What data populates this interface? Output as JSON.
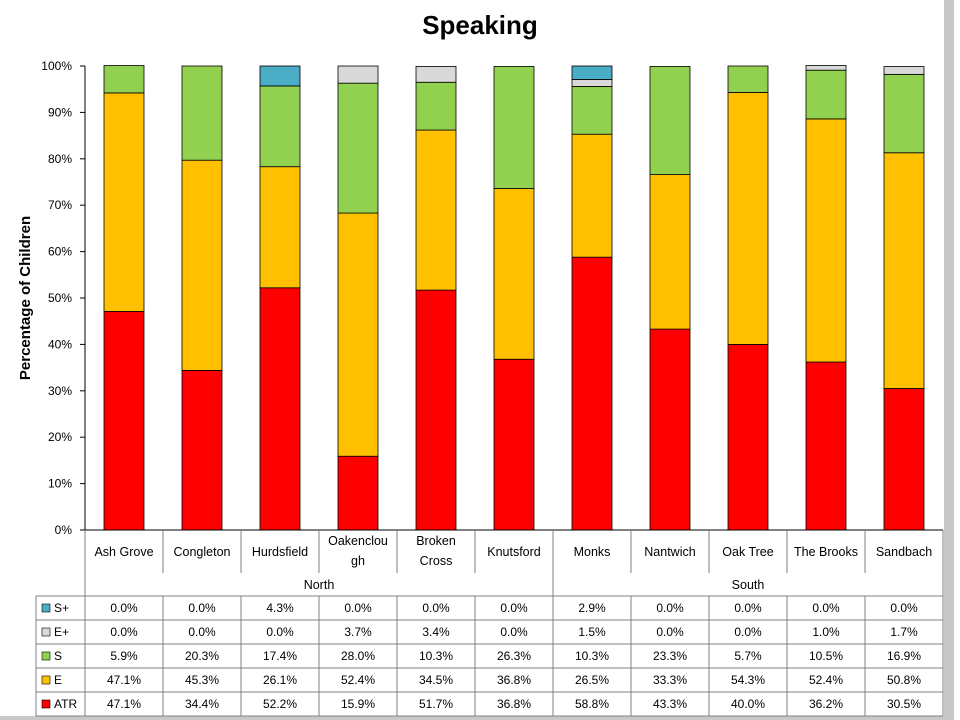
{
  "chart_data": {
    "type": "bar",
    "stacked": true,
    "title": "Speaking",
    "ylabel": "Percentage of Children",
    "xlabel": "",
    "ylim": [
      0,
      100
    ],
    "yticks": [
      "0%",
      "10%",
      "20%",
      "30%",
      "40%",
      "50%",
      "60%",
      "70%",
      "80%",
      "90%",
      "100%"
    ],
    "grid": false,
    "legend": "data-table-left",
    "categories": [
      "Ash Grove",
      "Congleton",
      "Hurdsfield",
      "Oakenclough",
      "Broken Cross",
      "Knutsford",
      "Monks",
      "Nantwich",
      "Oak Tree",
      "The Brooks",
      "Sandbach"
    ],
    "category_display": [
      [
        "Ash Grove"
      ],
      [
        "Congleton"
      ],
      [
        "Hurdsfield"
      ],
      [
        "Oakenclou",
        "gh"
      ],
      [
        "Broken",
        "Cross"
      ],
      [
        "Knutsford"
      ],
      [
        "Monks"
      ],
      [
        "Nantwich"
      ],
      [
        "Oak Tree"
      ],
      [
        "The Brooks"
      ],
      [
        "Sandbach"
      ]
    ],
    "groups": [
      {
        "name": "North",
        "span": 6
      },
      {
        "name": "South",
        "span": 5
      }
    ],
    "series": [
      {
        "name": "ATR",
        "color": "#ff0000",
        "values": [
          47.1,
          34.4,
          52.2,
          15.9,
          51.7,
          36.8,
          58.8,
          43.3,
          40.0,
          36.2,
          30.5
        ],
        "labels": [
          "47.1%",
          "34.4%",
          "52.2%",
          "15.9%",
          "51.7%",
          "36.8%",
          "58.8%",
          "43.3%",
          "40.0%",
          "36.2%",
          "30.5%"
        ]
      },
      {
        "name": "E",
        "color": "#ffc000",
        "values": [
          47.1,
          45.3,
          26.1,
          52.4,
          34.5,
          36.8,
          26.5,
          33.3,
          54.3,
          52.4,
          50.8
        ],
        "labels": [
          "47.1%",
          "45.3%",
          "26.1%",
          "52.4%",
          "34.5%",
          "36.8%",
          "26.5%",
          "33.3%",
          "54.3%",
          "52.4%",
          "50.8%"
        ]
      },
      {
        "name": "S",
        "color": "#92d050",
        "values": [
          5.9,
          20.3,
          17.4,
          28.0,
          10.3,
          26.3,
          10.3,
          23.3,
          5.7,
          10.5,
          16.9
        ],
        "labels": [
          "5.9%",
          "20.3%",
          "17.4%",
          "28.0%",
          "10.3%",
          "26.3%",
          "10.3%",
          "23.3%",
          "5.7%",
          "10.5%",
          "16.9%"
        ]
      },
      {
        "name": "E+",
        "color": "#d9d9d9",
        "values": [
          0.0,
          0.0,
          0.0,
          3.7,
          3.4,
          0.0,
          1.5,
          0.0,
          0.0,
          1.0,
          1.7
        ],
        "labels": [
          "0.0%",
          "0.0%",
          "0.0%",
          "3.7%",
          "3.4%",
          "0.0%",
          "1.5%",
          "0.0%",
          "0.0%",
          "1.0%",
          "1.7%"
        ]
      },
      {
        "name": "S+",
        "color": "#4bacc6",
        "values": [
          0.0,
          0.0,
          4.3,
          0.0,
          0.0,
          0.0,
          2.9,
          0.0,
          0.0,
          0.0,
          0.0
        ],
        "labels": [
          "0.0%",
          "0.0%",
          "4.3%",
          "0.0%",
          "0.0%",
          "0.0%",
          "2.9%",
          "0.0%",
          "0.0%",
          "0.0%",
          "0.0%"
        ]
      }
    ],
    "table_row_order": [
      "S+",
      "E+",
      "S",
      "E",
      "ATR"
    ]
  }
}
